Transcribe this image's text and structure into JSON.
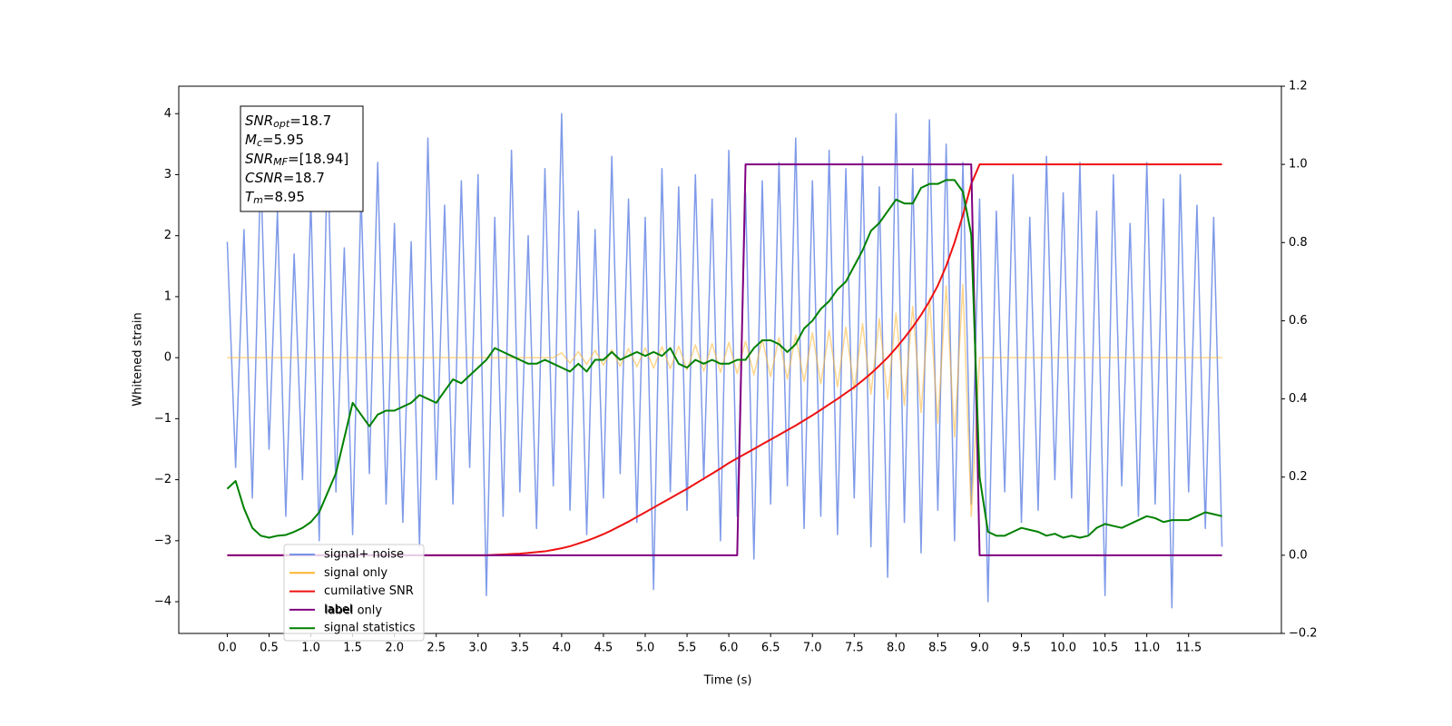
{
  "chart_data": {
    "type": "line",
    "xlabel": "Time (s)",
    "ylabel": "Whitened strain",
    "xlim": [
      -0.58,
      12.61
    ],
    "ylim": [
      -4.52,
      4.45
    ],
    "y2lim": [
      -0.2,
      1.2
    ],
    "xticks": [
      {
        "value": 0,
        "label": "0.0"
      },
      0.5,
      {
        "value": 1,
        "label": "1.0"
      },
      1.5,
      {
        "value": 2,
        "label": "2.0"
      },
      2.5,
      {
        "value": 3,
        "label": "3.0"
      },
      3.5,
      {
        "value": 4,
        "label": "4.0"
      },
      4.5,
      {
        "value": 5,
        "label": "5.0"
      },
      5.5,
      {
        "value": 6,
        "label": "6.0"
      },
      6.5,
      {
        "value": 7,
        "label": "7.0"
      },
      7.5,
      {
        "value": 8,
        "label": "8.0"
      },
      8.5,
      {
        "value": 9,
        "label": "9.0"
      },
      9.5,
      {
        "value": 10,
        "label": "10.0"
      },
      10.5,
      {
        "value": 11,
        "label": "11.0"
      },
      11.5
    ],
    "yticks": [
      {
        "value": -4,
        "label": "−4"
      },
      {
        "value": -3,
        "label": "−3"
      },
      {
        "value": -2,
        "label": "−2"
      },
      {
        "value": -1,
        "label": "−1"
      },
      0,
      1,
      2,
      3,
      4
    ],
    "y2ticks": [
      {
        "value": -0.2,
        "label": "−0.2"
      },
      {
        "value": 0,
        "label": "0.0"
      },
      0.2,
      0.4,
      0.6,
      0.8,
      {
        "value": 1,
        "label": "1.0"
      },
      1.2
    ],
    "stats_box": [
      {
        "text": "SNR",
        "sub": "opt",
        "value": "=18.7"
      },
      {
        "text": "M",
        "sub": "c",
        "value": "=5.95"
      },
      {
        "text": "SNR",
        "sub": "MF",
        "value": "=[18.94]"
      },
      {
        "text": "CSNR",
        "sub": null,
        "value": "=18.7"
      },
      {
        "text": "T",
        "sub": "m",
        "value": "=8.95"
      }
    ],
    "ghost_legend_entry": "label only",
    "x": [
      0,
      0.1,
      0.2,
      0.3,
      0.4,
      0.5,
      0.6,
      0.7,
      0.8,
      0.9,
      1,
      1.1,
      1.2,
      1.3,
      1.4,
      1.5,
      1.6,
      1.7,
      1.8,
      1.9,
      2,
      2.1,
      2.2,
      2.3,
      2.4,
      2.5,
      2.6,
      2.7,
      2.8,
      2.9,
      3,
      3.1,
      3.2,
      3.3,
      3.4,
      3.5,
      3.6,
      3.7,
      3.8,
      3.9,
      4,
      4.1,
      4.2,
      4.3,
      4.4,
      4.5,
      4.6,
      4.7,
      4.8,
      4.9,
      5,
      5.1,
      5.2,
      5.3,
      5.4,
      5.5,
      5.6,
      5.7,
      5.8,
      5.9,
      6,
      6.1,
      6.2,
      6.3,
      6.4,
      6.5,
      6.6,
      6.7,
      6.8,
      6.9,
      7,
      7.1,
      7.2,
      7.3,
      7.4,
      7.5,
      7.6,
      7.7,
      7.8,
      7.9,
      8,
      8.1,
      8.2,
      8.3,
      8.4,
      8.5,
      8.6,
      8.7,
      8.8,
      8.9,
      9,
      9.1,
      9.2,
      9.3,
      9.4,
      9.5,
      9.6,
      9.7,
      9.8,
      9.9,
      10,
      10.1,
      10.2,
      10.3,
      10.4,
      10.5,
      10.6,
      10.7,
      10.8,
      10.9,
      11,
      11.1,
      11.2,
      11.3,
      11.4,
      11.5,
      11.6,
      11.7,
      11.8,
      11.9
    ],
    "series": [
      {
        "name": "signal+ noise",
        "color": "#7895e8",
        "axis": "y",
        "values": [
          1.9,
          -1.8,
          2.1,
          -2.3,
          3.1,
          -1.5,
          2.4,
          -2.6,
          1.7,
          -2.0,
          2.6,
          -3.0,
          3.5,
          -2.2,
          1.8,
          -2.9,
          2.7,
          -1.9,
          3.2,
          -2.4,
          2.2,
          -2.7,
          1.9,
          -3.1,
          3.6,
          -2.0,
          2.5,
          -2.4,
          2.9,
          -1.8,
          3.0,
          -3.9,
          2.3,
          -2.6,
          3.4,
          -2.2,
          2.0,
          -2.8,
          3.1,
          -2.1,
          4.0,
          -2.5,
          2.4,
          -2.9,
          2.1,
          -2.3,
          3.3,
          -1.9,
          2.6,
          -2.7,
          2.3,
          -3.8,
          3.1,
          -2.2,
          2.8,
          -2.5,
          3.0,
          -2.0,
          2.6,
          -3.0,
          3.4,
          -2.6,
          2.7,
          -3.3,
          2.9,
          -2.4,
          3.2,
          -2.1,
          3.6,
          -2.8,
          2.9,
          -2.6,
          3.4,
          -2.9,
          3.1,
          -2.3,
          3.3,
          -3.1,
          2.8,
          -3.6,
          4.0,
          -2.7,
          3.1,
          -3.2,
          3.9,
          -2.5,
          3.5,
          -3.0,
          3.2,
          -2.4,
          2.6,
          -4.0,
          2.4,
          -2.2,
          3.0,
          -2.7,
          2.3,
          -2.5,
          3.3,
          -2.0,
          2.7,
          -2.3,
          3.2,
          -2.9,
          2.4,
          -3.9,
          3.0,
          -2.1,
          2.2,
          -2.6,
          3.2,
          -2.4,
          2.6,
          -4.1,
          3.0,
          -2.2,
          2.5,
          -2.8,
          2.3,
          -3.1
        ]
      },
      {
        "name": "signal only",
        "color": "#ffb52e",
        "axis": "y",
        "values": [
          0,
          0,
          0,
          0,
          0,
          0,
          0,
          0,
          0,
          0,
          0,
          0,
          0,
          0,
          0,
          0,
          0,
          0,
          0,
          0,
          0,
          0,
          0,
          0,
          0,
          0,
          0,
          0,
          0,
          0,
          0,
          0,
          0,
          0,
          0,
          0,
          0,
          0,
          0,
          0,
          0.08,
          -0.09,
          0.1,
          -0.11,
          0.12,
          -0.12,
          0.13,
          -0.14,
          0.15,
          -0.15,
          0.16,
          -0.17,
          0.18,
          -0.18,
          0.19,
          -0.2,
          0.21,
          -0.22,
          0.23,
          -0.24,
          0.25,
          -0.26,
          0.27,
          -0.28,
          0.3,
          -0.31,
          0.33,
          -0.35,
          0.37,
          -0.39,
          0.41,
          -0.43,
          0.45,
          -0.48,
          0.5,
          -0.53,
          0.56,
          -0.6,
          0.64,
          -0.68,
          0.73,
          -0.78,
          0.84,
          -0.9,
          0.98,
          -1.07,
          1.18,
          -1.3,
          1.2,
          -2.6,
          0,
          0,
          0,
          0,
          0,
          0,
          0,
          0,
          0,
          0,
          0,
          0,
          0,
          0,
          0,
          0,
          0,
          0,
          0,
          0,
          0,
          0,
          0,
          0,
          0,
          0,
          0,
          0,
          0,
          0
        ]
      },
      {
        "name": "cumilative SNR",
        "color": "#ee1111",
        "axis": "y2",
        "values": [
          0,
          0,
          0,
          0,
          0,
          0,
          0,
          0,
          0,
          0,
          0,
          0,
          0,
          0,
          0,
          0,
          0,
          0,
          0,
          0,
          0,
          0,
          0,
          0,
          0,
          0,
          0,
          0,
          0,
          0,
          0,
          0,
          0.001,
          0.002,
          0.003,
          0.004,
          0.006,
          0.008,
          0.01,
          0.014,
          0.018,
          0.023,
          0.03,
          0.037,
          0.045,
          0.054,
          0.064,
          0.075,
          0.086,
          0.098,
          0.11,
          0.122,
          0.134,
          0.146,
          0.158,
          0.17,
          0.183,
          0.196,
          0.209,
          0.222,
          0.236,
          0.248,
          0.26,
          0.272,
          0.284,
          0.296,
          0.308,
          0.32,
          0.332,
          0.345,
          0.358,
          0.372,
          0.386,
          0.4,
          0.415,
          0.43,
          0.447,
          0.465,
          0.485,
          0.506,
          0.53,
          0.556,
          0.584,
          0.615,
          0.65,
          0.69,
          0.74,
          0.8,
          0.87,
          0.95,
          1,
          1,
          1,
          1,
          1,
          1,
          1,
          1,
          1,
          1,
          1,
          1,
          1,
          1,
          1,
          1,
          1,
          1,
          1,
          1,
          1,
          1,
          1,
          1,
          1,
          1,
          1,
          1,
          1,
          1
        ]
      },
      {
        "name": "label",
        "color": "#800080",
        "axis": "y2",
        "values": [
          0,
          0,
          0,
          0,
          0,
          0,
          0,
          0,
          0,
          0,
          0,
          0,
          0,
          0,
          0,
          0,
          0,
          0,
          0,
          0,
          0,
          0,
          0,
          0,
          0,
          0,
          0,
          0,
          0,
          0,
          0,
          0,
          0,
          0,
          0,
          0,
          0,
          0,
          0,
          0,
          0,
          0,
          0,
          0,
          0,
          0,
          0,
          0,
          0,
          0,
          0,
          0,
          0,
          0,
          0,
          0,
          0,
          0,
          0,
          0,
          0,
          0,
          1,
          1,
          1,
          1,
          1,
          1,
          1,
          1,
          1,
          1,
          1,
          1,
          1,
          1,
          1,
          1,
          1,
          1,
          1,
          1,
          1,
          1,
          1,
          1,
          1,
          1,
          1,
          1,
          0,
          0,
          0,
          0,
          0,
          0,
          0,
          0,
          0,
          0,
          0,
          0,
          0,
          0,
          0,
          0,
          0,
          0,
          0,
          0,
          0,
          0,
          0,
          0,
          0,
          0,
          0,
          0,
          0,
          0
        ]
      },
      {
        "name": "signal statistics",
        "color": "#008000",
        "axis": "y2",
        "values": [
          0.17,
          0.19,
          0.12,
          0.07,
          0.05,
          0.045,
          0.05,
          0.052,
          0.06,
          0.07,
          0.085,
          0.11,
          0.16,
          0.21,
          0.3,
          0.39,
          0.36,
          0.33,
          0.36,
          0.37,
          0.37,
          0.38,
          0.39,
          0.41,
          0.4,
          0.39,
          0.42,
          0.45,
          0.44,
          0.46,
          0.48,
          0.5,
          0.53,
          0.52,
          0.51,
          0.5,
          0.49,
          0.49,
          0.5,
          0.49,
          0.48,
          0.47,
          0.49,
          0.47,
          0.5,
          0.5,
          0.52,
          0.5,
          0.51,
          0.52,
          0.51,
          0.52,
          0.51,
          0.53,
          0.49,
          0.48,
          0.5,
          0.49,
          0.5,
          0.49,
          0.49,
          0.5,
          0.5,
          0.53,
          0.55,
          0.55,
          0.54,
          0.52,
          0.54,
          0.58,
          0.6,
          0.63,
          0.65,
          0.68,
          0.7,
          0.74,
          0.78,
          0.83,
          0.85,
          0.88,
          0.91,
          0.9,
          0.9,
          0.94,
          0.95,
          0.95,
          0.96,
          0.96,
          0.93,
          0.82,
          0.2,
          0.06,
          0.05,
          0.05,
          0.06,
          0.07,
          0.065,
          0.06,
          0.05,
          0.055,
          0.045,
          0.05,
          0.045,
          0.05,
          0.07,
          0.08,
          0.075,
          0.07,
          0.08,
          0.09,
          0.1,
          0.095,
          0.085,
          0.09,
          0.09,
          0.09,
          0.1,
          0.11,
          0.105,
          0.1
        ]
      }
    ]
  }
}
